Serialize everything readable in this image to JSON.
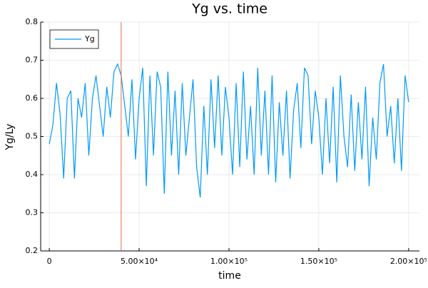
{
  "chart_data": {
    "type": "line",
    "title": "Yg vs. time",
    "x_label": "time",
    "y_label": "Yg/Ly",
    "x": [
      0,
      2000,
      4000,
      6000,
      8000,
      10000,
      12000,
      14000,
      16000,
      18000,
      20000,
      22000,
      24000,
      26000,
      28000,
      30000,
      32000,
      34000,
      36000,
      38000,
      40000,
      42000,
      44000,
      46000,
      48000,
      50000,
      52000,
      54000,
      56000,
      58000,
      60000,
      62000,
      64000,
      66000,
      68000,
      70000,
      72000,
      74000,
      76000,
      78000,
      80000,
      82000,
      84000,
      86000,
      88000,
      90000,
      92000,
      94000,
      96000,
      98000,
      100000,
      102000,
      104000,
      106000,
      108000,
      110000,
      112000,
      114000,
      116000,
      118000,
      120000,
      122000,
      124000,
      126000,
      128000,
      130000,
      132000,
      134000,
      136000,
      138000,
      140000,
      142000,
      144000,
      146000,
      148000,
      150000,
      152000,
      154000,
      156000,
      158000,
      160000,
      162000,
      164000,
      166000,
      168000,
      170000,
      172000,
      174000,
      176000,
      178000,
      180000,
      182000,
      184000,
      186000,
      188000,
      190000,
      192000,
      194000,
      196000,
      198000,
      200000
    ],
    "series": [
      {
        "name": "Yg",
        "color": "#009af9",
        "values": [
          0.48,
          0.53,
          0.64,
          0.56,
          0.39,
          0.6,
          0.62,
          0.39,
          0.6,
          0.55,
          0.64,
          0.45,
          0.6,
          0.66,
          0.58,
          0.5,
          0.63,
          0.55,
          0.67,
          0.69,
          0.66,
          0.58,
          0.5,
          0.65,
          0.44,
          0.6,
          0.68,
          0.37,
          0.66,
          0.45,
          0.67,
          0.63,
          0.35,
          0.67,
          0.45,
          0.62,
          0.4,
          0.64,
          0.45,
          0.55,
          0.65,
          0.42,
          0.34,
          0.58,
          0.4,
          0.65,
          0.47,
          0.66,
          0.45,
          0.63,
          0.55,
          0.4,
          0.64,
          0.42,
          0.67,
          0.44,
          0.58,
          0.4,
          0.68,
          0.45,
          0.62,
          0.4,
          0.66,
          0.38,
          0.59,
          0.45,
          0.62,
          0.39,
          0.57,
          0.64,
          0.47,
          0.68,
          0.66,
          0.48,
          0.62,
          0.55,
          0.4,
          0.6,
          0.43,
          0.63,
          0.38,
          0.66,
          0.5,
          0.42,
          0.61,
          0.41,
          0.59,
          0.44,
          0.63,
          0.37,
          0.55,
          0.44,
          0.64,
          0.69,
          0.5,
          0.58,
          0.43,
          0.6,
          0.41,
          0.66,
          0.59
        ]
      }
    ],
    "vline": {
      "value": 40000,
      "color": "#e26f46"
    },
    "xlim": [
      -4800,
      206000
    ],
    "ylim": [
      0.2,
      0.8
    ],
    "xticks": [
      0,
      {
        "value": 50000,
        "label": "5.00×10⁴"
      },
      {
        "value": 100000,
        "label": "1.00×10⁵"
      },
      {
        "value": 150000,
        "label": "1.50×10⁵"
      },
      {
        "value": 200000,
        "label": "2.00×10⁵"
      }
    ],
    "yticks": [
      0.2,
      0.3,
      0.4,
      0.5,
      0.6,
      0.7,
      0.8
    ],
    "grid": true,
    "legend": "top-left"
  }
}
